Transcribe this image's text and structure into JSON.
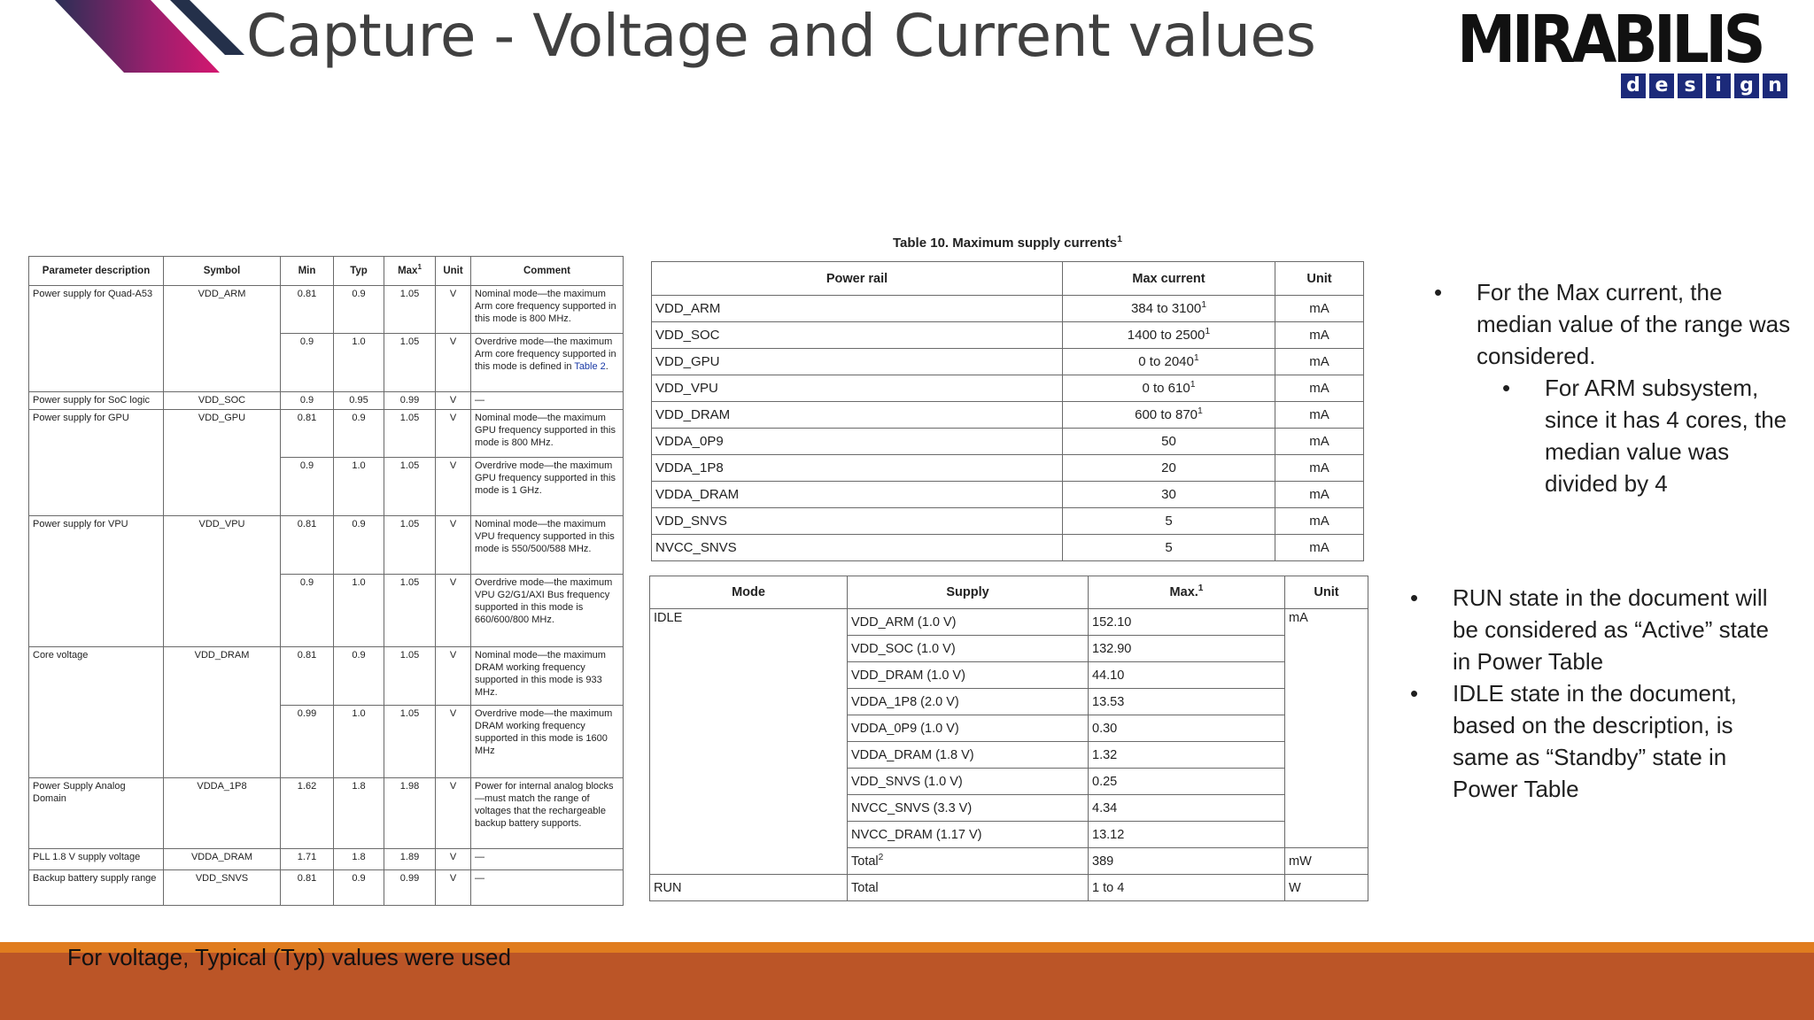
{
  "title": "Capture - Voltage and Current values",
  "logo": {
    "word": "MIRABILIS",
    "sub": [
      "d",
      "e",
      "s",
      "i",
      "g",
      "n"
    ],
    "colors": {
      "word": "#111111",
      "sub_bg": "#1c2a7a"
    }
  },
  "voltage_table": {
    "headers": [
      "Parameter description",
      "Symbol",
      "Min",
      "Typ",
      "Max",
      "Unit",
      "Comment"
    ],
    "max_sup": "1",
    "rows": [
      {
        "param": "Power supply for Quad-A53",
        "symbol": "VDD_ARM",
        "span": 2,
        "sub": [
          {
            "min": "0.81",
            "typ": "0.9",
            "max": "1.05",
            "unit": "V",
            "comment": "Nominal mode—the maximum Arm core frequency supported in this mode is 800 MHz."
          },
          {
            "min": "0.9",
            "typ": "1.0",
            "max": "1.05",
            "unit": "V",
            "comment": "Overdrive mode—the maximum Arm core frequency supported in this mode is defined in ",
            "link": "Table 2",
            "after": "."
          }
        ]
      },
      {
        "param": "Power supply for SoC logic",
        "symbol": "VDD_SOC",
        "span": 1,
        "sub": [
          {
            "min": "0.9",
            "typ": "0.95",
            "max": "0.99",
            "unit": "V",
            "comment": "—"
          }
        ]
      },
      {
        "param": "Power supply for GPU",
        "symbol": "VDD_GPU",
        "span": 2,
        "sub": [
          {
            "min": "0.81",
            "typ": "0.9",
            "max": "1.05",
            "unit": "V",
            "comment": "Nominal mode—the maximum GPU frequency supported in this mode is 800 MHz."
          },
          {
            "min": "0.9",
            "typ": "1.0",
            "max": "1.05",
            "unit": "V",
            "comment": "Overdrive mode—the maximum GPU frequency supported in this mode is 1 GHz."
          }
        ]
      },
      {
        "param": "Power supply for VPU",
        "symbol": "VDD_VPU",
        "span": 2,
        "sub": [
          {
            "min": "0.81",
            "typ": "0.9",
            "max": "1.05",
            "unit": "V",
            "comment": "Nominal mode—the maximum VPU frequency supported in this mode is 550/500/588 MHz."
          },
          {
            "min": "0.9",
            "typ": "1.0",
            "max": "1.05",
            "unit": "V",
            "comment": "Overdrive mode—the maximum VPU G2/G1/AXI Bus frequency supported in this mode is 660/600/800 MHz."
          }
        ]
      },
      {
        "param": "Core voltage",
        "symbol": "VDD_DRAM",
        "span": 2,
        "sub": [
          {
            "min": "0.81",
            "typ": "0.9",
            "max": "1.05",
            "unit": "V",
            "comment": "Nominal mode—the maximum DRAM working frequency supported in this mode is 933 MHz."
          },
          {
            "min": "0.99",
            "typ": "1.0",
            "max": "1.05",
            "unit": "V",
            "comment": "Overdrive mode—the maximum DRAM working frequency supported in this mode is 1600 MHz"
          }
        ]
      },
      {
        "param": "Power Supply Analog Domain",
        "symbol": "VDDA_1P8",
        "span": 1,
        "sub": [
          {
            "min": "1.62",
            "typ": "1.8",
            "max": "1.98",
            "unit": "V",
            "comment": "Power for internal analog blocks—must match the range of voltages that the rechargeable backup battery supports."
          }
        ]
      },
      {
        "param": "PLL 1.8 V supply voltage",
        "symbol": "VDDA_DRAM",
        "span": 1,
        "sub": [
          {
            "min": "1.71",
            "typ": "1.8",
            "max": "1.89",
            "unit": "V",
            "comment": "—"
          }
        ]
      },
      {
        "param": "Backup battery supply range",
        "symbol": "VDD_SNVS",
        "span": 1,
        "sub": [
          {
            "min": "0.81",
            "typ": "0.9",
            "max": "0.99",
            "unit": "V",
            "comment": "—"
          }
        ]
      }
    ]
  },
  "currents_table": {
    "caption": "Table 10. Maximum supply currents",
    "caption_sup": "1",
    "headers": [
      "Power rail",
      "Max current",
      "Unit"
    ],
    "rows": [
      {
        "rail": "VDD_ARM",
        "max": "384 to 3100",
        "sup": "1",
        "unit": "mA"
      },
      {
        "rail": "VDD_SOC",
        "max": "1400 to 2500",
        "sup": "1",
        "unit": "mA"
      },
      {
        "rail": "VDD_GPU",
        "max": "0 to 2040",
        "sup": "1",
        "unit": "mA"
      },
      {
        "rail": "VDD_VPU",
        "max": "0 to 610",
        "sup": "1",
        "unit": "mA"
      },
      {
        "rail": "VDD_DRAM",
        "max": "600 to 870",
        "sup": "1",
        "unit": "mA"
      },
      {
        "rail": "VDDA_0P9",
        "max": "50",
        "sup": "",
        "unit": "mA"
      },
      {
        "rail": "VDDA_1P8",
        "max": "20",
        "sup": "",
        "unit": "mA"
      },
      {
        "rail": "VDDA_DRAM",
        "max": "30",
        "sup": "",
        "unit": "mA"
      },
      {
        "rail": "VDD_SNVS",
        "max": "5",
        "sup": "",
        "unit": "mA"
      },
      {
        "rail": "NVCC_SNVS",
        "max": "5",
        "sup": "",
        "unit": "mA"
      }
    ]
  },
  "mode_table": {
    "headers": [
      "Mode",
      "Supply",
      "Max.",
      "Unit"
    ],
    "max_sup": "1",
    "idle": {
      "mode": "IDLE",
      "unit_ma": "mA",
      "rows": [
        {
          "supply": "VDD_ARM (1.0 V)",
          "max": "152.10"
        },
        {
          "supply": "VDD_SOC (1.0 V)",
          "max": "132.90"
        },
        {
          "supply": "VDD_DRAM (1.0 V)",
          "max": "44.10"
        },
        {
          "supply": "VDDA_1P8 (2.0 V)",
          "max": "13.53"
        },
        {
          "supply": "VDDA_0P9 (1.0 V)",
          "max": "0.30"
        },
        {
          "supply": "VDDA_DRAM (1.8 V)",
          "max": "1.32"
        },
        {
          "supply": "VDD_SNVS (1.0 V)",
          "max": "0.25"
        },
        {
          "supply": "NVCC_SNVS (3.3 V)",
          "max": "4.34"
        },
        {
          "supply": "NVCC_DRAM (1.17 V)",
          "max": "13.12"
        }
      ],
      "total": {
        "supply": "Total",
        "sup": "2",
        "max": "389",
        "unit": "mW"
      }
    },
    "run": {
      "mode": "RUN",
      "supply": "Total",
      "max": "1 to 4",
      "unit": "W"
    }
  },
  "bullets_current": {
    "main": "For the Max current, the median value of the range was considered.",
    "sub": "For ARM subsystem, since it has 4 cores, the median value was divided by 4"
  },
  "bullets_state": [
    "RUN state in the document will be considered as “Active” state in Power Table",
    "IDLE state in the document, based on the description, is same as “Standby” state in Power Table"
  ],
  "footnote": "For voltage, Typical (Typ) values were used",
  "colors": {
    "title": "#404040",
    "footer_line": "#e07c1f",
    "footer_bar": "#bb5527",
    "deco_dark": "#24304a",
    "deco_pink": "#d4176f"
  }
}
